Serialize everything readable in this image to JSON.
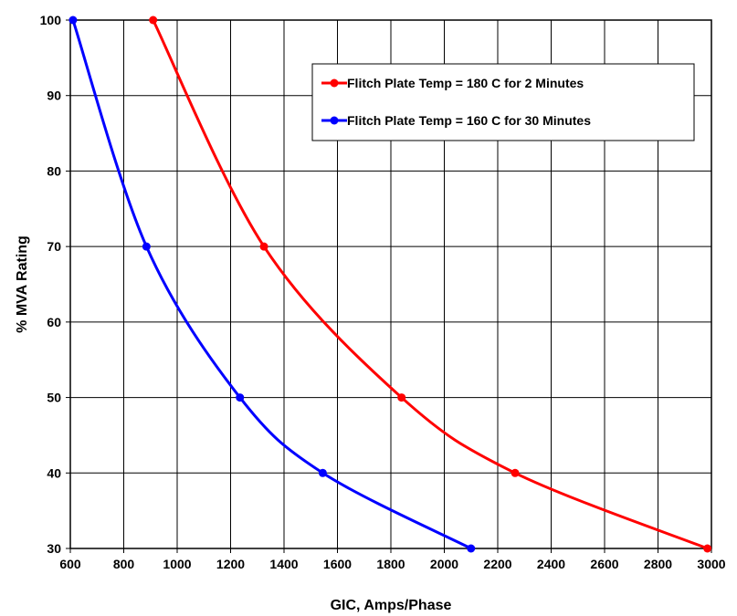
{
  "chart_data": {
    "type": "line",
    "title": "",
    "xlabel": "GIC, Amps/Phase",
    "ylabel": "% MVA Rating",
    "xlim": [
      600,
      3000
    ],
    "ylim": [
      30,
      100
    ],
    "xticks": [
      "600",
      "800",
      "1000",
      "1200",
      "1400",
      "1600",
      "1800",
      "2000",
      "2200",
      "2400",
      "2600",
      "2800",
      "3000"
    ],
    "yticks": [
      "30",
      "40",
      "50",
      "60",
      "70",
      "80",
      "90",
      "100"
    ],
    "grid": true,
    "legend_position": "top-right",
    "series": [
      {
        "name": "Flitch Plate Temp = 180 C for 2 Minutes",
        "color": "#ff0000",
        "points": [
          {
            "x": 910,
            "y": 100
          },
          {
            "x": 1325,
            "y": 70
          },
          {
            "x": 1840,
            "y": 50
          },
          {
            "x": 2265,
            "y": 40
          },
          {
            "x": 2985,
            "y": 30
          }
        ]
      },
      {
        "name": "Flitch Plate Temp = 160 C for 30 Minutes",
        "color": "#0000ff",
        "points": [
          {
            "x": 610,
            "y": 100
          },
          {
            "x": 885,
            "y": 70
          },
          {
            "x": 1235,
            "y": 50
          },
          {
            "x": 1545,
            "y": 40
          },
          {
            "x": 2100,
            "y": 30
          }
        ]
      }
    ]
  }
}
